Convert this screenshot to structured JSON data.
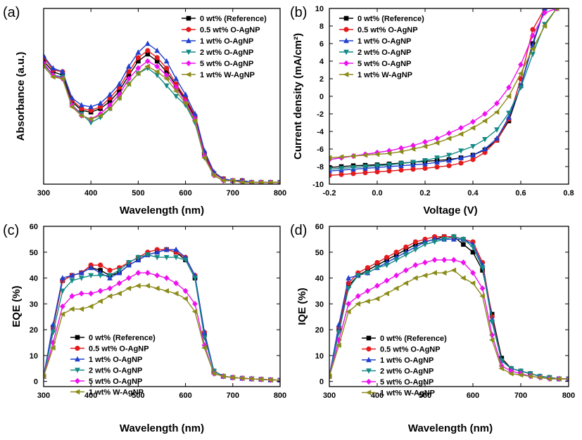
{
  "chart_data": [
    {
      "id": "a",
      "type": "line",
      "panel_label": "(a)",
      "xlabel": "Wavelength (nm)",
      "ylabel": "Absorbance (a.u.)",
      "xlim": [
        300,
        800
      ],
      "ylim": [
        0,
        1.0
      ],
      "xticks": [
        300,
        400,
        500,
        600,
        700,
        800
      ],
      "yticks": [],
      "legend_position": "top-right",
      "x": [
        300,
        320,
        340,
        360,
        380,
        400,
        420,
        440,
        460,
        480,
        500,
        520,
        540,
        560,
        580,
        600,
        620,
        640,
        660,
        680,
        700,
        720,
        740,
        760,
        780,
        800
      ],
      "series": [
        {
          "name": "0 wt% (Reference)",
          "color": "#000000",
          "marker": "square",
          "values": [
            0.7,
            0.64,
            0.62,
            0.47,
            0.42,
            0.41,
            0.43,
            0.47,
            0.53,
            0.62,
            0.7,
            0.74,
            0.7,
            0.64,
            0.56,
            0.48,
            0.38,
            0.17,
            0.06,
            0.03,
            0.02,
            0.02,
            0.01,
            0.01,
            0.01,
            0.01
          ]
        },
        {
          "name": "0.5 wt% O-AgNP",
          "color": "#e41a1c",
          "marker": "circle",
          "values": [
            0.72,
            0.65,
            0.64,
            0.48,
            0.43,
            0.42,
            0.44,
            0.49,
            0.55,
            0.64,
            0.72,
            0.76,
            0.72,
            0.66,
            0.57,
            0.49,
            0.39,
            0.18,
            0.06,
            0.03,
            0.02,
            0.02,
            0.01,
            0.01,
            0.01,
            0.01
          ]
        },
        {
          "name": "1 wt% O-AgNP",
          "color": "#1f3fcf",
          "marker": "triangle-up",
          "values": [
            0.73,
            0.66,
            0.64,
            0.49,
            0.45,
            0.44,
            0.46,
            0.51,
            0.57,
            0.67,
            0.75,
            0.8,
            0.76,
            0.7,
            0.6,
            0.51,
            0.4,
            0.19,
            0.07,
            0.03,
            0.02,
            0.02,
            0.01,
            0.01,
            0.01,
            0.01
          ]
        },
        {
          "name": "2 wt% O-AgNP",
          "color": "#138a86",
          "marker": "triangle-down",
          "values": [
            0.68,
            0.62,
            0.61,
            0.45,
            0.4,
            0.35,
            0.38,
            0.43,
            0.49,
            0.57,
            0.63,
            0.66,
            0.62,
            0.56,
            0.5,
            0.45,
            0.35,
            0.15,
            0.05,
            0.02,
            0.02,
            0.01,
            0.01,
            0.01,
            0.01,
            0.01
          ]
        },
        {
          "name": "5 wt% O-AgNP",
          "color": "#ee11ee",
          "marker": "diamond",
          "values": [
            0.69,
            0.62,
            0.6,
            0.45,
            0.39,
            0.37,
            0.4,
            0.45,
            0.51,
            0.6,
            0.66,
            0.7,
            0.67,
            0.62,
            0.55,
            0.47,
            0.37,
            0.16,
            0.05,
            0.02,
            0.02,
            0.01,
            0.01,
            0.01,
            0.01,
            0.01
          ]
        },
        {
          "name": "1 wt% W-AgNP",
          "color": "#8b8b1a",
          "marker": "triangle-left",
          "values": [
            0.67,
            0.61,
            0.6,
            0.44,
            0.39,
            0.37,
            0.39,
            0.43,
            0.49,
            0.57,
            0.63,
            0.67,
            0.64,
            0.6,
            0.53,
            0.46,
            0.36,
            0.15,
            0.05,
            0.02,
            0.02,
            0.01,
            0.01,
            0.01,
            0.01,
            0.01
          ]
        }
      ]
    },
    {
      "id": "b",
      "type": "line",
      "panel_label": "(b)",
      "xlabel": "Voltage (V)",
      "ylabel": "Current density (mA/cm²)",
      "xlim": [
        -0.2,
        0.8
      ],
      "ylim": [
        -10,
        10
      ],
      "xticks": [
        -0.2,
        0.0,
        0.2,
        0.4,
        0.6,
        0.8
      ],
      "xtick_labels": [
        "-0.2",
        "0.0",
        "0.2",
        "0.4",
        "0.6",
        "0.8"
      ],
      "yticks": [
        -10,
        -8,
        -6,
        -4,
        -2,
        0,
        2,
        4,
        6,
        8,
        10
      ],
      "legend_position": "top-left",
      "x": [
        -0.2,
        -0.15,
        -0.1,
        -0.05,
        0.0,
        0.05,
        0.1,
        0.15,
        0.2,
        0.25,
        0.3,
        0.35,
        0.4,
        0.45,
        0.5,
        0.55,
        0.6,
        0.65,
        0.7,
        0.75
      ],
      "series": [
        {
          "name": "0 wt% (Reference)",
          "color": "#000000",
          "marker": "square",
          "values": [
            -8.1,
            -8.0,
            -7.9,
            -7.85,
            -7.8,
            -7.7,
            -7.6,
            -7.5,
            -7.4,
            -7.3,
            -7.2,
            -7.0,
            -6.7,
            -6.1,
            -5.0,
            -2.8,
            1.2,
            6.0,
            10.0,
            10.0
          ]
        },
        {
          "name": "0.5 wt% O-AgNP",
          "color": "#e41a1c",
          "marker": "circle",
          "values": [
            -9.0,
            -8.9,
            -8.8,
            -8.7,
            -8.6,
            -8.5,
            -8.4,
            -8.3,
            -8.2,
            -8.05,
            -7.9,
            -7.6,
            -7.2,
            -6.4,
            -5.0,
            -2.6,
            2.0,
            7.6,
            10.0,
            10.0
          ]
        },
        {
          "name": "1 wt% O-AgNP",
          "color": "#1f3fcf",
          "marker": "triangle-up",
          "values": [
            -8.5,
            -8.4,
            -8.3,
            -8.2,
            -8.1,
            -8.0,
            -7.9,
            -7.8,
            -7.7,
            -7.5,
            -7.3,
            -7.0,
            -6.7,
            -6.0,
            -4.8,
            -2.4,
            1.2,
            5.8,
            10.0,
            10.0
          ]
        },
        {
          "name": "2 wt% O-AgNP",
          "color": "#138a86",
          "marker": "triangle-down",
          "values": [
            -8.3,
            -8.2,
            -8.1,
            -8.0,
            -7.9,
            -7.8,
            -7.65,
            -7.5,
            -7.3,
            -7.0,
            -6.7,
            -6.2,
            -5.7,
            -4.9,
            -3.8,
            -1.9,
            1.0,
            4.8,
            8.2,
            10.0
          ]
        },
        {
          "name": "5 wt% O-AgNP",
          "color": "#ee11ee",
          "marker": "diamond",
          "values": [
            -7.2,
            -7.0,
            -6.8,
            -6.6,
            -6.4,
            -6.2,
            -5.9,
            -5.6,
            -5.2,
            -4.8,
            -4.2,
            -3.6,
            -2.9,
            -2.0,
            -0.8,
            1.0,
            3.6,
            6.9,
            9.5,
            10.0
          ]
        },
        {
          "name": "1 wt% W-AgNP",
          "color": "#8b8b1a",
          "marker": "triangle-left",
          "values": [
            -7.0,
            -6.9,
            -6.8,
            -6.7,
            -6.6,
            -6.5,
            -6.3,
            -6.0,
            -5.7,
            -5.3,
            -4.8,
            -4.3,
            -3.6,
            -2.8,
            -1.8,
            0.0,
            2.6,
            5.4,
            8.0,
            10.0
          ]
        }
      ]
    },
    {
      "id": "c",
      "type": "line",
      "panel_label": "(c)",
      "xlabel": "Wavelength (nm)",
      "ylabel": "EQE (%)",
      "xlim": [
        300,
        800
      ],
      "ylim": [
        -2,
        60
      ],
      "xticks": [
        300,
        400,
        500,
        600,
        700,
        800
      ],
      "yticks": [
        0,
        10,
        20,
        30,
        40,
        50,
        60
      ],
      "legend_position": "bottom-left",
      "x": [
        300,
        320,
        340,
        360,
        380,
        400,
        420,
        440,
        460,
        480,
        500,
        520,
        540,
        560,
        580,
        600,
        620,
        640,
        660,
        680,
        700,
        720,
        740,
        760,
        780,
        800
      ],
      "series": [
        {
          "name": "0 wt% (Reference)",
          "color": "#000000",
          "marker": "square",
          "values": [
            2,
            21,
            39,
            41,
            42,
            44,
            43,
            41,
            42,
            45,
            47,
            49,
            50,
            51,
            50,
            47,
            40,
            18,
            4,
            2,
            1.5,
            1.2,
            1,
            0.8,
            0.6,
            0.5
          ]
        },
        {
          "name": "0.5 wt% O-AgNP",
          "color": "#e41a1c",
          "marker": "circle",
          "values": [
            2,
            21,
            39,
            41,
            42,
            45,
            45,
            43,
            44,
            46,
            48,
            50,
            51,
            51,
            50,
            48,
            41,
            19,
            4,
            2,
            1.5,
            1.2,
            1,
            0.8,
            0.6,
            0.5
          ]
        },
        {
          "name": "1 wt% O-AgNP",
          "color": "#1f3fcf",
          "marker": "triangle-up",
          "values": [
            2,
            22,
            40,
            41,
            42,
            44,
            42,
            40,
            42,
            45,
            47,
            49,
            50,
            51,
            51,
            48,
            41,
            19,
            4,
            2,
            1.5,
            1.2,
            1,
            0.8,
            0.6,
            0.5
          ]
        },
        {
          "name": "2 wt% O-AgNP",
          "color": "#138a86",
          "marker": "triangle-down",
          "values": [
            2,
            19,
            35,
            39,
            40,
            41,
            41,
            41,
            43,
            46,
            48,
            49,
            48,
            48,
            48,
            47,
            40,
            17,
            4,
            2,
            1.5,
            1.2,
            1,
            0.8,
            0.6,
            0.5
          ]
        },
        {
          "name": "5 wt% O-AgNP",
          "color": "#ee11ee",
          "marker": "diamond",
          "values": [
            2,
            15,
            29,
            33,
            34,
            34,
            35,
            36,
            38,
            40,
            42,
            42,
            41,
            40,
            38,
            35,
            30,
            14,
            3,
            2,
            1.5,
            1.2,
            1,
            0.8,
            0.6,
            0.5
          ]
        },
        {
          "name": "1 wt% W-AgNP",
          "color": "#8b8b1a",
          "marker": "triangle-left",
          "values": [
            2,
            13,
            26,
            28,
            28,
            29,
            31,
            33,
            34,
            36,
            37,
            37,
            36,
            35,
            34,
            32,
            27,
            13,
            3,
            2,
            1.5,
            1.2,
            1,
            0.8,
            0.6,
            0.5
          ]
        }
      ]
    },
    {
      "id": "d",
      "type": "line",
      "panel_label": "(d)",
      "xlabel": "Wavelength (nm)",
      "ylabel": "IQE (%)",
      "xlim": [
        300,
        800
      ],
      "ylim": [
        -2,
        60
      ],
      "xticks": [
        300,
        400,
        500,
        600,
        700,
        800
      ],
      "yticks": [
        0,
        10,
        20,
        30,
        40,
        50,
        60
      ],
      "legend_position": "bottom-left",
      "x": [
        300,
        320,
        340,
        360,
        380,
        400,
        420,
        440,
        460,
        480,
        500,
        520,
        540,
        560,
        580,
        600,
        620,
        640,
        660,
        680,
        700,
        720,
        740,
        760,
        780,
        800
      ],
      "series": [
        {
          "name": "0 wt% (Reference)",
          "color": "#000000",
          "marker": "square",
          "values": [
            2,
            20,
            37,
            41,
            43,
            45,
            47,
            49,
            51,
            53,
            54,
            55,
            56,
            56,
            53,
            50,
            43,
            26,
            9,
            5,
            4,
            3,
            2,
            1.5,
            1,
            1
          ]
        },
        {
          "name": "0.5 wt% O-AgNP",
          "color": "#e41a1c",
          "marker": "circle",
          "values": [
            2,
            21,
            38,
            42,
            44,
            46,
            48,
            50,
            52,
            54,
            55,
            56,
            56,
            56,
            55,
            54,
            46,
            25,
            8,
            5,
            4,
            3,
            2,
            1.5,
            1,
            1
          ]
        },
        {
          "name": "1 wt% O-AgNP",
          "color": "#1f3fcf",
          "marker": "triangle-up",
          "values": [
            2,
            22,
            40,
            41,
            42,
            44,
            46,
            48,
            50,
            52,
            54,
            55,
            55,
            55,
            55,
            53,
            45,
            24,
            8,
            5,
            4,
            3,
            2,
            1.5,
            1,
            1
          ]
        },
        {
          "name": "2 wt% O-AgNP",
          "color": "#138a86",
          "marker": "triangle-down",
          "values": [
            2,
            19,
            36,
            41,
            42,
            44,
            45,
            47,
            49,
            51,
            53,
            54,
            55,
            56,
            55,
            52,
            44,
            23,
            8,
            5,
            4,
            3,
            2,
            1.5,
            1,
            1
          ]
        },
        {
          "name": "5 wt% O-AgNP",
          "color": "#ee11ee",
          "marker": "diamond",
          "values": [
            2,
            16,
            30,
            33,
            35,
            37,
            39,
            41,
            43,
            45,
            46,
            47,
            47,
            47,
            46,
            42,
            36,
            18,
            6,
            4,
            3,
            2,
            1.5,
            1,
            1,
            1
          ]
        },
        {
          "name": "1 wt% W-AgNP",
          "color": "#8b8b1a",
          "marker": "triangle-left",
          "values": [
            2,
            14,
            27,
            30,
            31,
            32,
            34,
            36,
            38,
            40,
            41,
            42,
            42,
            43,
            40,
            38,
            33,
            16,
            5,
            3,
            2.5,
            2,
            1.5,
            1,
            1,
            1
          ]
        }
      ]
    }
  ]
}
